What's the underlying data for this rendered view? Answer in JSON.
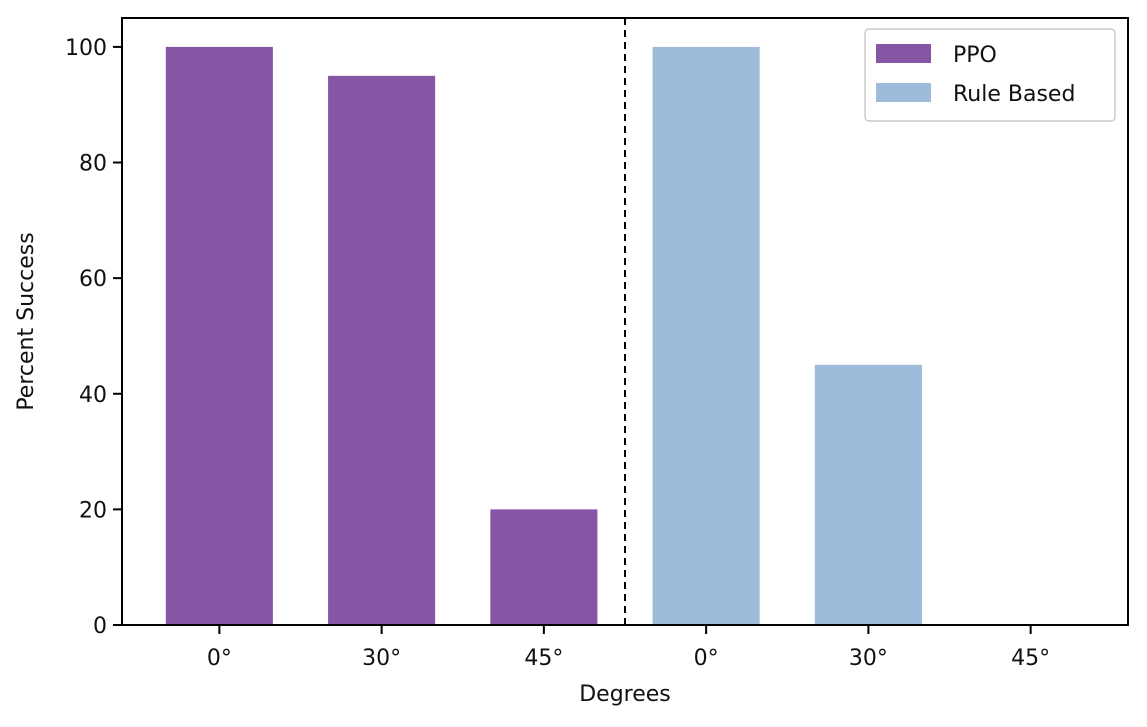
{
  "chart_data": {
    "type": "bar",
    "title": "",
    "xlabel": "Degrees",
    "ylabel": "Percent Success",
    "ylim": [
      0,
      105
    ],
    "yticks": [
      0,
      20,
      40,
      60,
      80,
      100
    ],
    "grid": false,
    "legend_position": "top-right",
    "divider": "dashed vertical line between the two groups",
    "series": [
      {
        "name": "PPO",
        "color": "#8656a5",
        "categories": [
          "0°",
          "30°",
          "45°"
        ],
        "values": [
          100,
          95,
          20
        ]
      },
      {
        "name": "Rule Based",
        "color": "#9ebbd9",
        "categories": [
          "0°",
          "30°",
          "45°"
        ],
        "values": [
          100,
          45,
          0
        ]
      }
    ]
  }
}
